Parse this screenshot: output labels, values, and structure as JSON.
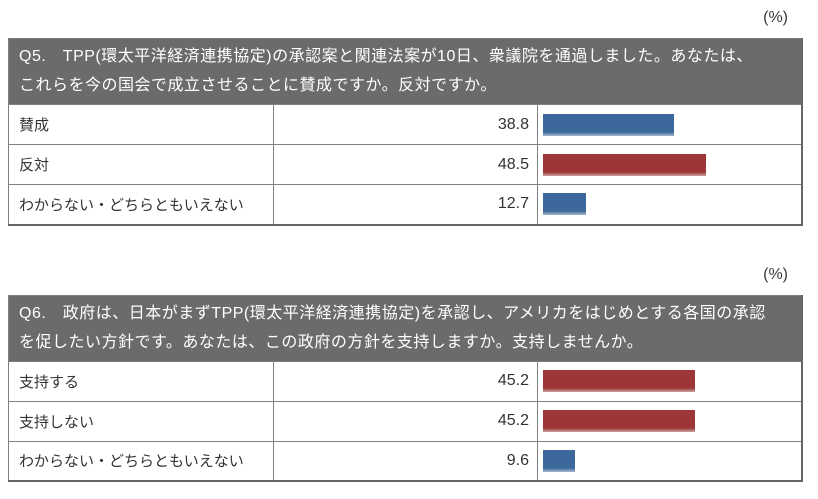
{
  "page": {
    "background": "#ffffff",
    "border_color": "#7f7f7f",
    "outer_border_color": "#666666",
    "header_bg": "#6b6b6b",
    "header_text_color": "#ffffff"
  },
  "surveys": [
    {
      "unit_label": "(%)",
      "question": "Q5.　TPP(環太平洋経済連携協定)の承認案と関連法案が10日、衆議院を通過しました。あなたは、\nこれらを今の国会で成立させることに賛成ですか。反対ですか。",
      "rows": [
        {
          "label": "賛成",
          "value": "38.8",
          "value_num": 38.8,
          "bar_color": "#3c689b",
          "bar_edge": "#a7b9ce"
        },
        {
          "label": "反対",
          "value": "48.5",
          "value_num": 48.5,
          "bar_color": "#9e3536",
          "bar_edge": "#cba2a3"
        },
        {
          "label": "わからない・どちらともいえない",
          "value": "12.7",
          "value_num": 12.7,
          "bar_color": "#3c689b",
          "bar_edge": "#a7b9ce"
        }
      ]
    },
    {
      "unit_label": "(%)",
      "question": "Q6.　政府は、日本がまずTPP(環太平洋経済連携協定)を承認し、アメリカをはじめとする各国の承認\nを促したい方針です。あなたは、この政府の方針を支持しますか。支持しませんか。",
      "rows": [
        {
          "label": "支持する",
          "value": "45.2",
          "value_num": 45.2,
          "bar_color": "#9e3536",
          "bar_edge": "#cba2a3"
        },
        {
          "label": "支持しない",
          "value": "45.2",
          "value_num": 45.2,
          "bar_color": "#9e3536",
          "bar_edge": "#cba2a3"
        },
        {
          "label": "わからない・どちらともいえない",
          "value": "9.6",
          "value_num": 9.6,
          "bar_color": "#3c689b",
          "bar_edge": "#a7b9ce"
        }
      ]
    }
  ],
  "chart_data": [
    {
      "type": "bar",
      "orientation": "horizontal",
      "title": "Q5.　TPP(環太平洋経済連携協定)の承認案と関連法案が10日、衆議院を通過しました。あなたは、これらを今の国会で成立させることに賛成ですか。反対ですか。",
      "unit": "%",
      "categories": [
        "賛成",
        "反対",
        "わからない・どちらともいえない"
      ],
      "values": [
        38.8,
        48.5,
        12.7
      ],
      "bar_colors": [
        "#3c689b",
        "#9e3536",
        "#3c689b"
      ],
      "xlim": [
        0,
        100
      ],
      "grid": false,
      "legend": false,
      "data_labels": true
    },
    {
      "type": "bar",
      "orientation": "horizontal",
      "title": "Q6.　政府は、日本がまずTPP(環太平洋経済連携協定)を承認し、アメリカをはじめとする各国の承認を促したい方針です。あなたは、この政府の方針を支持しますか。支持しませんか。",
      "unit": "%",
      "categories": [
        "支持する",
        "支持しない",
        "わからない・どちらともいえない"
      ],
      "values": [
        45.2,
        45.2,
        9.6
      ],
      "bar_colors": [
        "#9e3536",
        "#9e3536",
        "#3c689b"
      ],
      "xlim": [
        0,
        100
      ],
      "grid": false,
      "legend": false,
      "data_labels": true
    }
  ]
}
